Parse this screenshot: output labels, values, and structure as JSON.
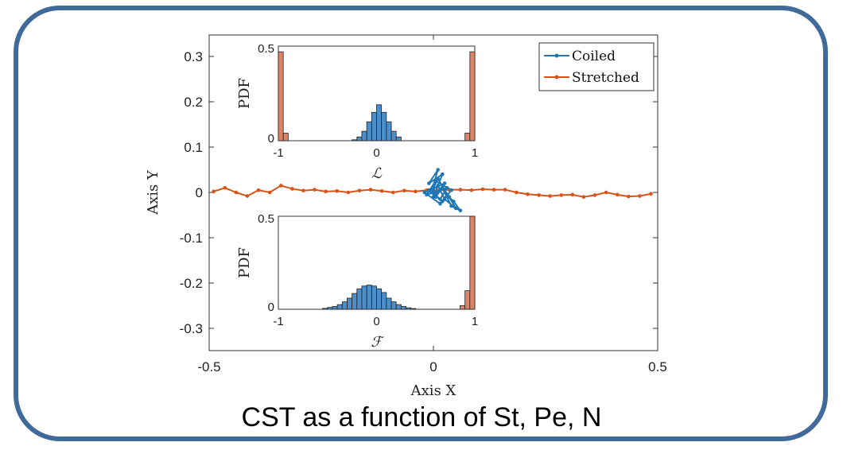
{
  "caption": "CST as a function of St, Pe, N",
  "colors": {
    "coiled": "#1f77b4",
    "stretched": "#d95319",
    "stretched_bar": "#de8466",
    "coiled_bar": "#4a8fc9",
    "frame": "#3f6a9a"
  },
  "chart_data": [
    {
      "type": "line",
      "xlabel": "Axis X",
      "ylabel": "Axis Y",
      "xlim": [
        -0.5,
        0.5
      ],
      "ylim": [
        -0.35,
        0.35
      ],
      "xticks": [
        "-0.5",
        "0",
        "0.5"
      ],
      "yticks": [
        "-0.3",
        "-0.2",
        "-0.1",
        "0",
        "0.1",
        "0.2",
        "0.3"
      ],
      "legend": "top-right",
      "grid": false,
      "series": [
        {
          "name": "Coiled",
          "x": [
            -0.005,
            0.01,
            -0.01,
            0.02,
            0.0,
            0.025,
            -0.008,
            0.015,
            0.03,
            -0.015,
            0.005,
            0.04,
            0.02,
            -0.005,
            0.01,
            0.035,
            0.05,
            0.025,
            0.01,
            0.0,
            -0.02,
            0.015,
            0.03,
            0.045,
            0.06,
            0.04,
            0.02,
            0.005,
            -0.01,
            0.0
          ],
          "y": [
            0.0,
            0.05,
            0.02,
            0.04,
            -0.01,
            0.02,
            0.005,
            -0.015,
            0.01,
            -0.005,
            0.025,
            0.005,
            -0.02,
            0.0,
            0.03,
            -0.01,
            -0.035,
            -0.015,
            0.015,
            0.008,
            0.0,
            -0.025,
            -0.005,
            -0.02,
            -0.04,
            -0.03,
            0.01,
            -0.01,
            0.005,
            0.0
          ]
        },
        {
          "name": "Stretched",
          "x": [
            -0.49,
            -0.465,
            -0.44,
            -0.415,
            -0.39,
            -0.365,
            -0.34,
            -0.315,
            -0.29,
            -0.265,
            -0.24,
            -0.215,
            -0.19,
            -0.165,
            -0.14,
            -0.115,
            -0.09,
            -0.065,
            -0.04,
            -0.015,
            0.01,
            0.035,
            0.06,
            0.085,
            0.11,
            0.135,
            0.16,
            0.185,
            0.21,
            0.235,
            0.26,
            0.285,
            0.31,
            0.335,
            0.36,
            0.385,
            0.41,
            0.435,
            0.46,
            0.485
          ],
          "y": [
            0.002,
            0.01,
            0.0,
            -0.008,
            0.005,
            0.0,
            0.015,
            0.008,
            0.004,
            0.006,
            0.002,
            0.003,
            0.0,
            0.004,
            0.006,
            0.003,
            0.0,
            0.004,
            0.002,
            0.005,
            0.004,
            0.006,
            0.006,
            0.005,
            0.007,
            0.006,
            0.006,
            0.0,
            -0.004,
            -0.006,
            -0.008,
            -0.006,
            -0.005,
            -0.01,
            -0.006,
            0.0,
            -0.005,
            -0.009,
            -0.008,
            -0.003
          ]
        }
      ]
    },
    {
      "type": "bar",
      "xlabel": "ℒ",
      "ylabel": "PDF",
      "xlim": [
        -1,
        1
      ],
      "ylim": [
        0,
        0.5
      ],
      "xticks": [
        "-1",
        "0",
        "1"
      ],
      "yticks": [
        "0",
        "0.5"
      ],
      "series": [
        {
          "name": "Coiled",
          "x": [
            -0.225,
            -0.175,
            -0.125,
            -0.075,
            -0.025,
            0.025,
            0.075,
            0.125,
            0.175,
            0.225
          ],
          "values": [
            0.005,
            0.02,
            0.05,
            0.1,
            0.15,
            0.19,
            0.15,
            0.1,
            0.05,
            0.02
          ]
        },
        {
          "name": "Stretched",
          "x": [
            -0.975,
            -0.925,
            0.925,
            0.975
          ],
          "values": [
            0.47,
            0.04,
            0.04,
            0.47
          ]
        }
      ]
    },
    {
      "type": "bar",
      "xlabel": "ℱ",
      "ylabel": "PDF",
      "xlim": [
        -1,
        1
      ],
      "ylim": [
        0,
        0.5
      ],
      "xticks": [
        "-1",
        "0",
        "1"
      ],
      "yticks": [
        "0",
        "0.5"
      ],
      "series": [
        {
          "name": "Coiled",
          "x": [
            -0.525,
            -0.475,
            -0.425,
            -0.375,
            -0.325,
            -0.275,
            -0.225,
            -0.175,
            -0.125,
            -0.075,
            -0.025,
            0.025,
            0.075,
            0.125,
            0.175,
            0.225,
            0.275,
            0.325,
            0.375
          ],
          "values": [
            0.005,
            0.01,
            0.015,
            0.025,
            0.04,
            0.06,
            0.085,
            0.11,
            0.125,
            0.13,
            0.125,
            0.11,
            0.09,
            0.06,
            0.04,
            0.025,
            0.015,
            0.008,
            0.004
          ]
        },
        {
          "name": "Stretched",
          "x": [
            0.875,
            0.925,
            0.975
          ],
          "values": [
            0.02,
            0.1,
            0.5
          ]
        }
      ]
    }
  ]
}
